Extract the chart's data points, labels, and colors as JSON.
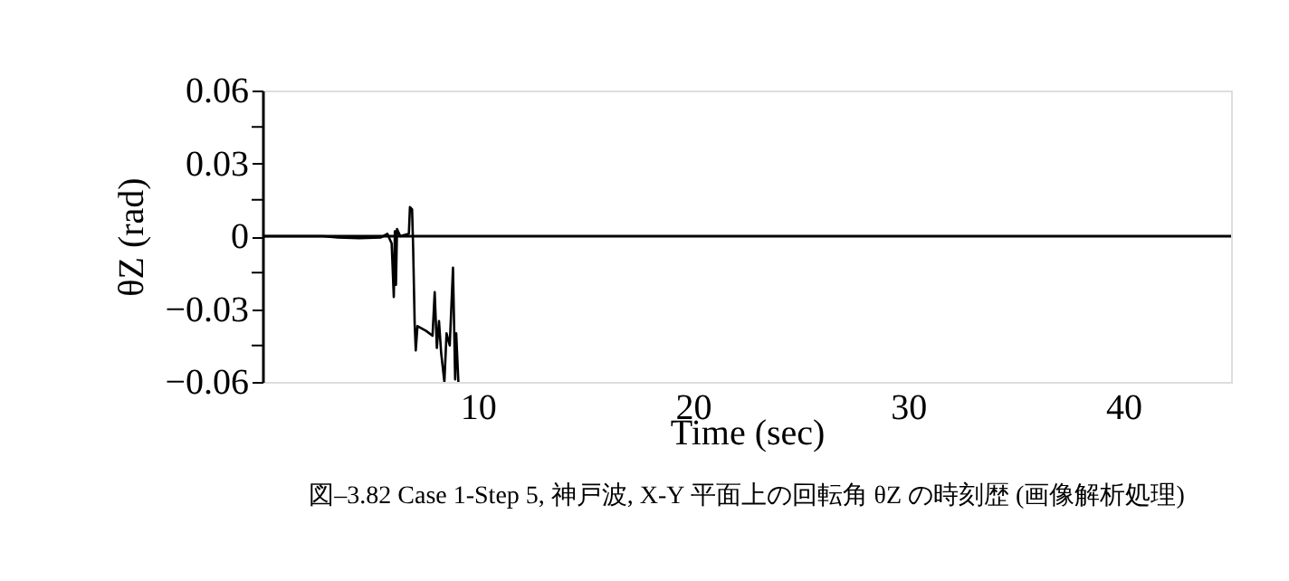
{
  "chart_data": {
    "type": "line",
    "title": "図–3.82 Case 1-Step 5, 神戸波, X-Y 平面上の回転角 θZ の時刻歴 (画像解析処理)",
    "xlabel": "Time (sec)",
    "ylabel": "θZ (rad)",
    "series": [
      {
        "color": "#000000",
        "x": [
          0,
          2.8,
          3.5,
          4.5,
          5.5,
          5.8,
          6.0,
          6.1,
          6.15,
          6.2,
          6.25,
          6.4,
          6.8,
          6.85,
          6.95,
          7.0,
          7.07,
          7.12,
          7.2,
          7.6,
          7.9,
          8.0,
          8.1,
          8.2,
          8.3,
          8.45,
          8.55,
          8.7,
          8.85,
          8.95,
          9.0,
          9.1
        ],
        "values": [
          0,
          0,
          -0.0005,
          -0.0008,
          -0.0005,
          0.001,
          -0.003,
          -0.025,
          0.002,
          -0.02,
          0.003,
          0,
          0.001,
          0.012,
          0.011,
          -0.005,
          -0.036,
          -0.047,
          -0.037,
          -0.039,
          -0.041,
          -0.023,
          -0.046,
          -0.035,
          -0.048,
          -0.06,
          -0.04,
          -0.045,
          -0.013,
          -0.059,
          -0.04,
          -0.06
        ]
      }
    ],
    "xlim": [
      0,
      45
    ],
    "xticks": [
      10,
      20,
      30,
      40
    ],
    "ylim": [
      -0.06,
      0.06
    ],
    "yticks": [
      {
        "value": -0.06,
        "label": "−0.06"
      },
      {
        "value": -0.045,
        "label": null
      },
      {
        "value": -0.03,
        "label": "−0.03"
      },
      {
        "value": -0.015,
        "label": null
      },
      {
        "value": 0,
        "label": "0"
      },
      {
        "value": 0.015,
        "label": null
      },
      {
        "value": 0.03,
        "label": "0.03"
      },
      {
        "value": 0.045,
        "label": null
      },
      {
        "value": 0.06,
        "label": "0.06"
      }
    ],
    "ref_lines": [
      {
        "axis": "y",
        "value": 0,
        "color": "#000000"
      }
    ],
    "grid": false,
    "line_style": "solid",
    "marker": "none"
  }
}
